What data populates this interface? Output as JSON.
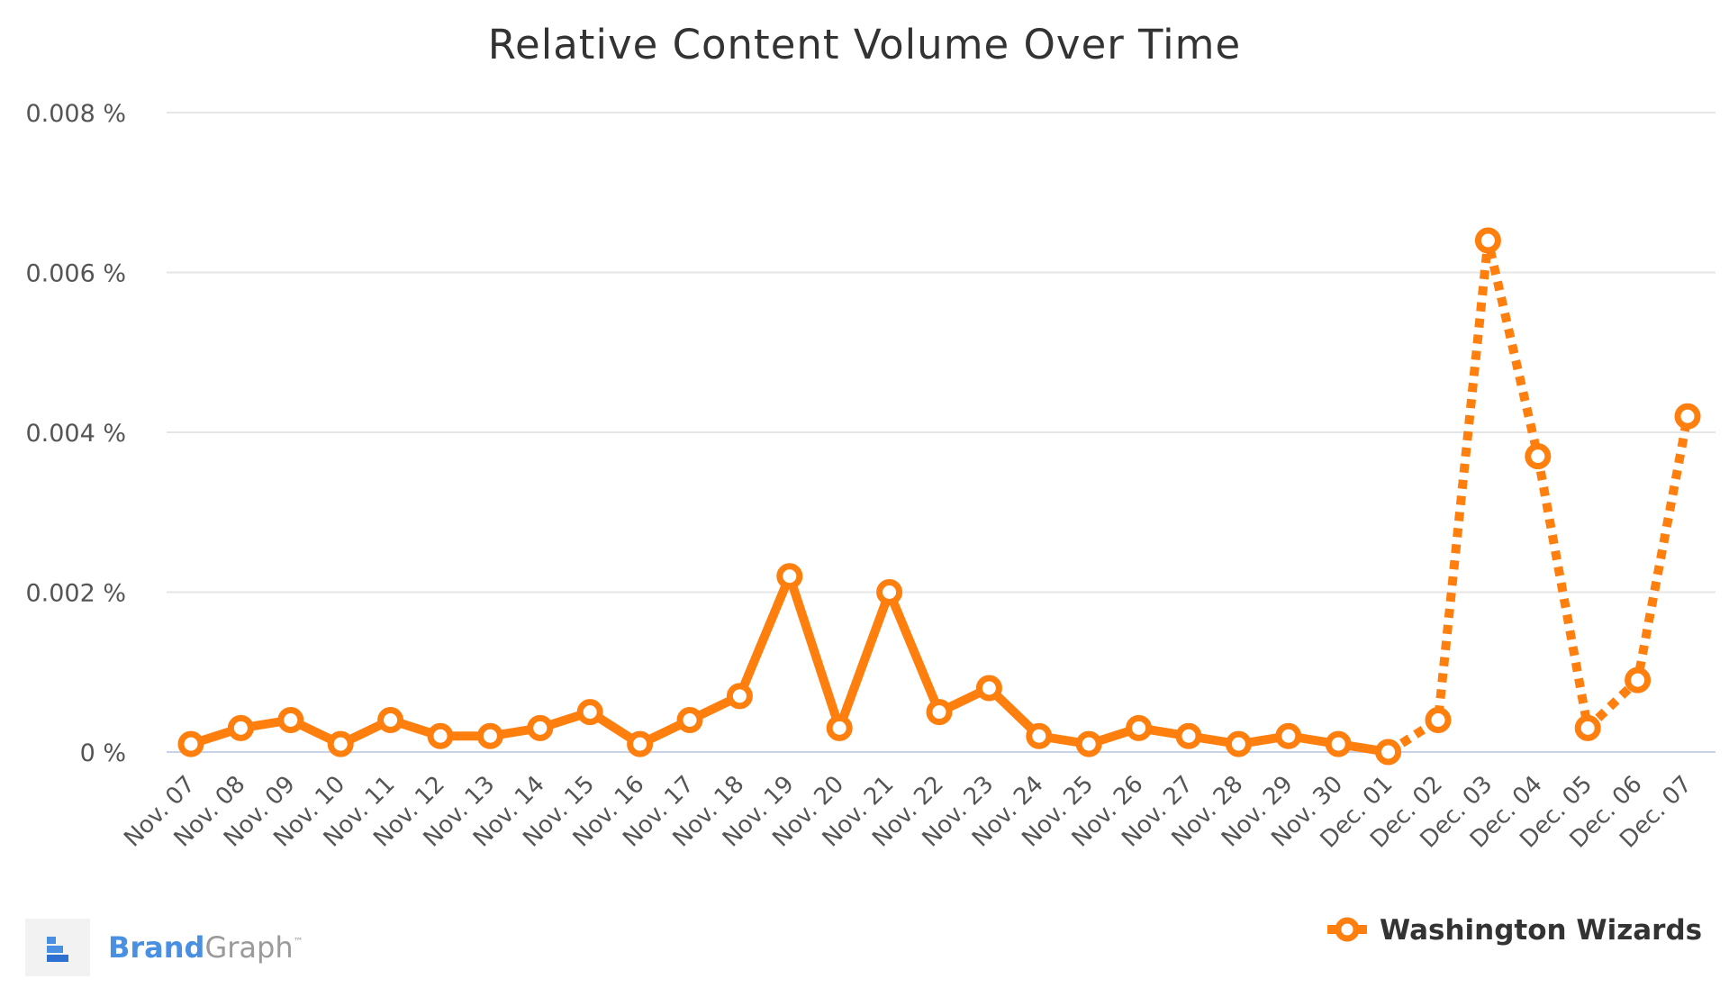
{
  "chart_data": {
    "type": "line",
    "title": "Relative Content Volume Over Time",
    "categories": [
      "Nov. 07",
      "Nov. 08",
      "Nov. 09",
      "Nov. 10",
      "Nov. 11",
      "Nov. 12",
      "Nov. 13",
      "Nov. 14",
      "Nov. 15",
      "Nov. 16",
      "Nov. 17",
      "Nov. 18",
      "Nov. 19",
      "Nov. 20",
      "Nov. 21",
      "Nov. 22",
      "Nov. 23",
      "Nov. 24",
      "Nov. 25",
      "Nov. 26",
      "Nov. 27",
      "Nov. 28",
      "Nov. 29",
      "Nov. 30",
      "Dec. 01",
      "Dec. 02",
      "Dec. 03",
      "Dec. 04",
      "Dec. 05",
      "Dec. 06",
      "Dec. 07"
    ],
    "series": [
      {
        "name": "Washington Wizards",
        "color": "#ff7f0e",
        "values": [
          0.0001,
          0.0003,
          0.0004,
          0.0001,
          0.0004,
          0.0002,
          0.0002,
          0.0003,
          0.0005,
          0.0001,
          0.0004,
          0.0007,
          0.0022,
          0.0003,
          0.002,
          0.0005,
          0.0008,
          0.0002,
          0.0001,
          0.0003,
          0.0002,
          0.0001,
          0.0002,
          0.0001,
          0.0,
          0.0004,
          0.0064,
          0.0037,
          0.0003,
          0.0009,
          0.0042
        ],
        "dashed_from_category": "Dec. 01"
      }
    ],
    "ylim": [
      0,
      0.008
    ],
    "yticks": [
      0,
      0.002,
      0.004,
      0.006,
      0.008
    ],
    "ytick_labels": [
      "0 %",
      "0.002 %",
      "0.004 %",
      "0.006 %",
      "0.008 %"
    ],
    "xlabel": "",
    "ylabel": "",
    "grid": true,
    "legend_position": "bottom-right"
  },
  "branding": {
    "brand_part1": "Brand",
    "brand_part2": "Graph",
    "trademark": "™"
  }
}
